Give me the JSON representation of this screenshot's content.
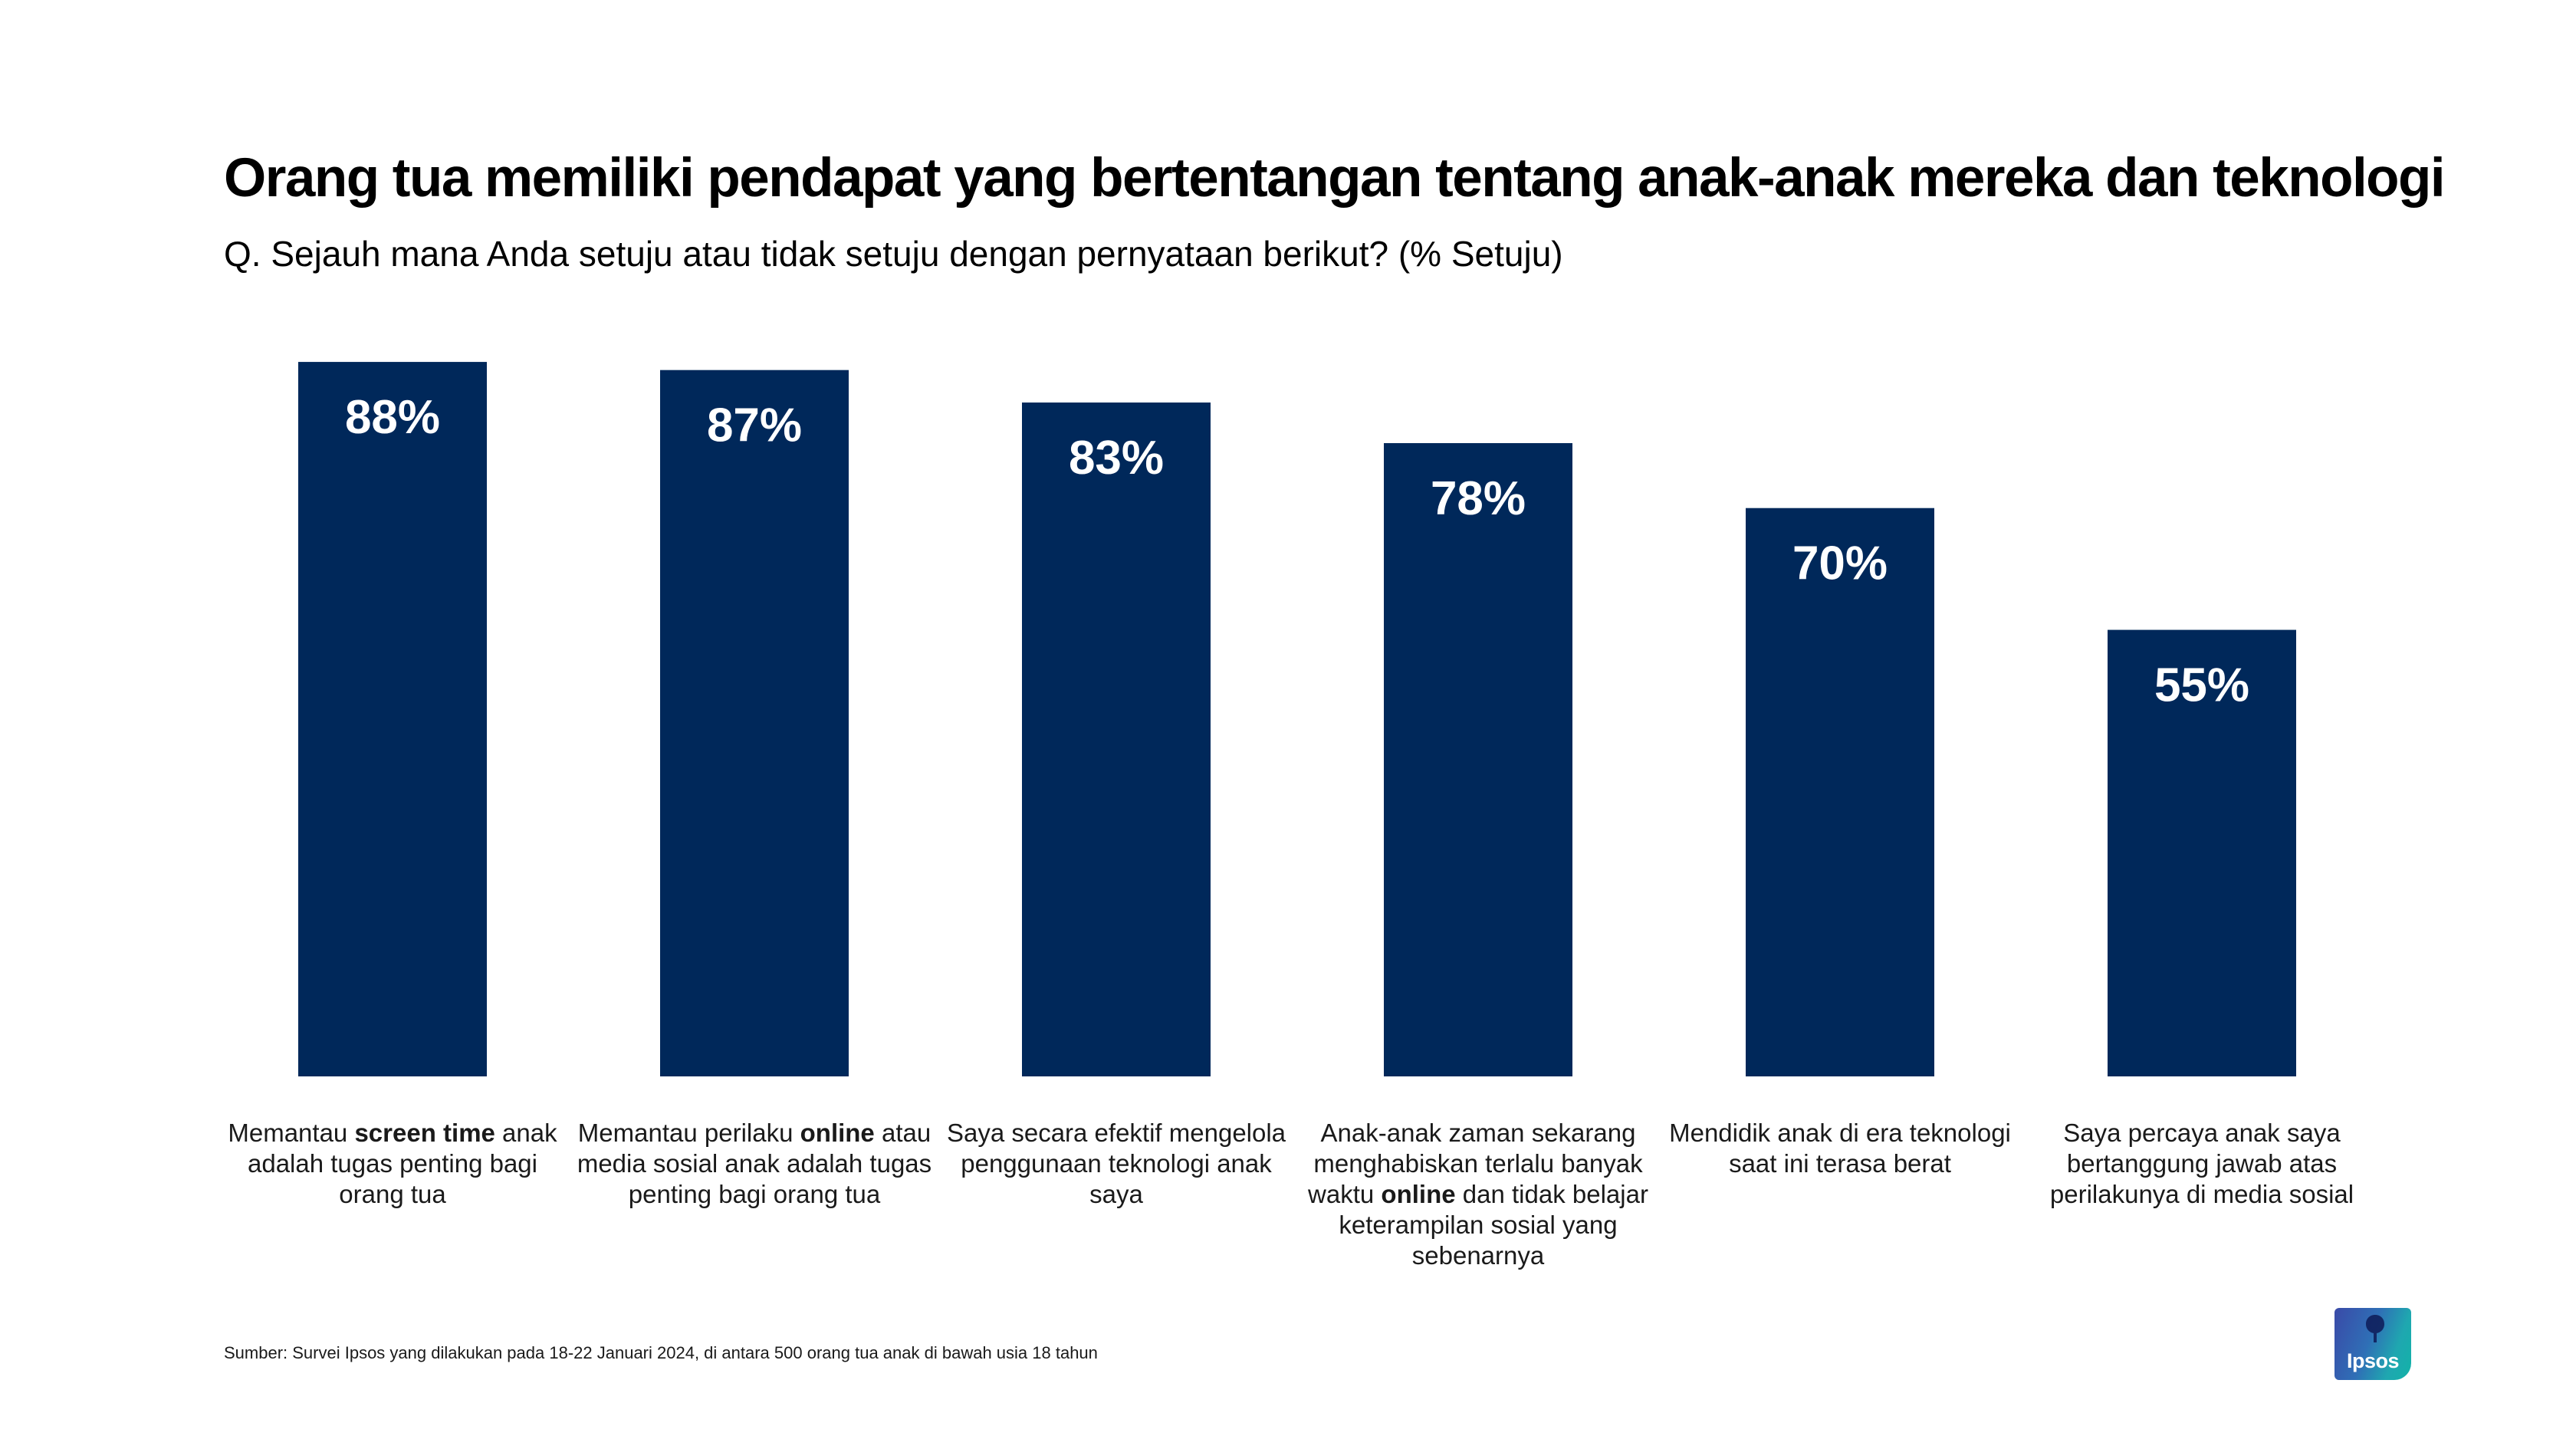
{
  "header": {
    "title": "Orang tua memiliki pendapat yang bertentangan tentang anak-anak mereka dan teknologi",
    "subtitle": "Q. Sejauh mana Anda setuju atau tidak setuju dengan pernyataan berikut? (% Setuju)"
  },
  "chart_data": {
    "type": "bar",
    "categories": [
      "Memantau screen time anak adalah tugas penting bagi orang tua",
      "Memantau perilaku online atau media sosial anak adalah tugas penting bagi orang tua",
      "Saya secara efektif mengelola penggunaan teknologi anak saya",
      "Anak-anak zaman sekarang menghabiskan terlalu banyak waktu online dan tidak belajar keterampilan sosial yang sebenarnya",
      "Mendidik anak di era teknologi saat ini terasa berat",
      "Saya percaya anak saya bertanggung jawab atas perilakunya di media sosial"
    ],
    "category_label_parts": [
      [
        {
          "t": "Memantau ",
          "b": false
        },
        {
          "t": "screen time",
          "b": true
        },
        {
          "t": " anak adalah tugas penting bagi orang tua",
          "b": false
        }
      ],
      [
        {
          "t": "Memantau perilaku ",
          "b": false
        },
        {
          "t": "online",
          "b": true
        },
        {
          "t": " atau media sosial anak adalah tugas penting bagi orang tua",
          "b": false
        }
      ],
      [
        {
          "t": "Saya secara efektif mengelola penggunaan teknologi anak saya",
          "b": false
        }
      ],
      [
        {
          "t": "Anak-anak zaman sekarang menghabiskan terlalu banyak waktu ",
          "b": false
        },
        {
          "t": "online",
          "b": true
        },
        {
          "t": " dan tidak belajar keterampilan sosial yang sebenarnya",
          "b": false
        }
      ],
      [
        {
          "t": "Mendidik anak di era teknologi saat ini terasa berat",
          "b": false
        }
      ],
      [
        {
          "t": "Saya percaya anak saya bertanggung jawab atas perilakunya di media sosial",
          "b": false
        }
      ]
    ],
    "values": [
      88,
      87,
      83,
      78,
      70,
      55
    ],
    "value_labels": [
      "88%",
      "87%",
      "83%",
      "78%",
      "70%",
      "55%"
    ],
    "unit": "%",
    "ylim": [
      0,
      100
    ],
    "grid": false,
    "legend": "none",
    "bar_color": "#00285a",
    "value_label_color": "#ffffff"
  },
  "footer": {
    "source": "Sumber: Survei Ipsos yang dilakukan pada 18-22 Januari 2024, di antara 500 orang tua anak di bawah usia 18 tahun"
  },
  "logo": {
    "text": "Ipsos",
    "icon": "ipsos-logo-icon"
  }
}
